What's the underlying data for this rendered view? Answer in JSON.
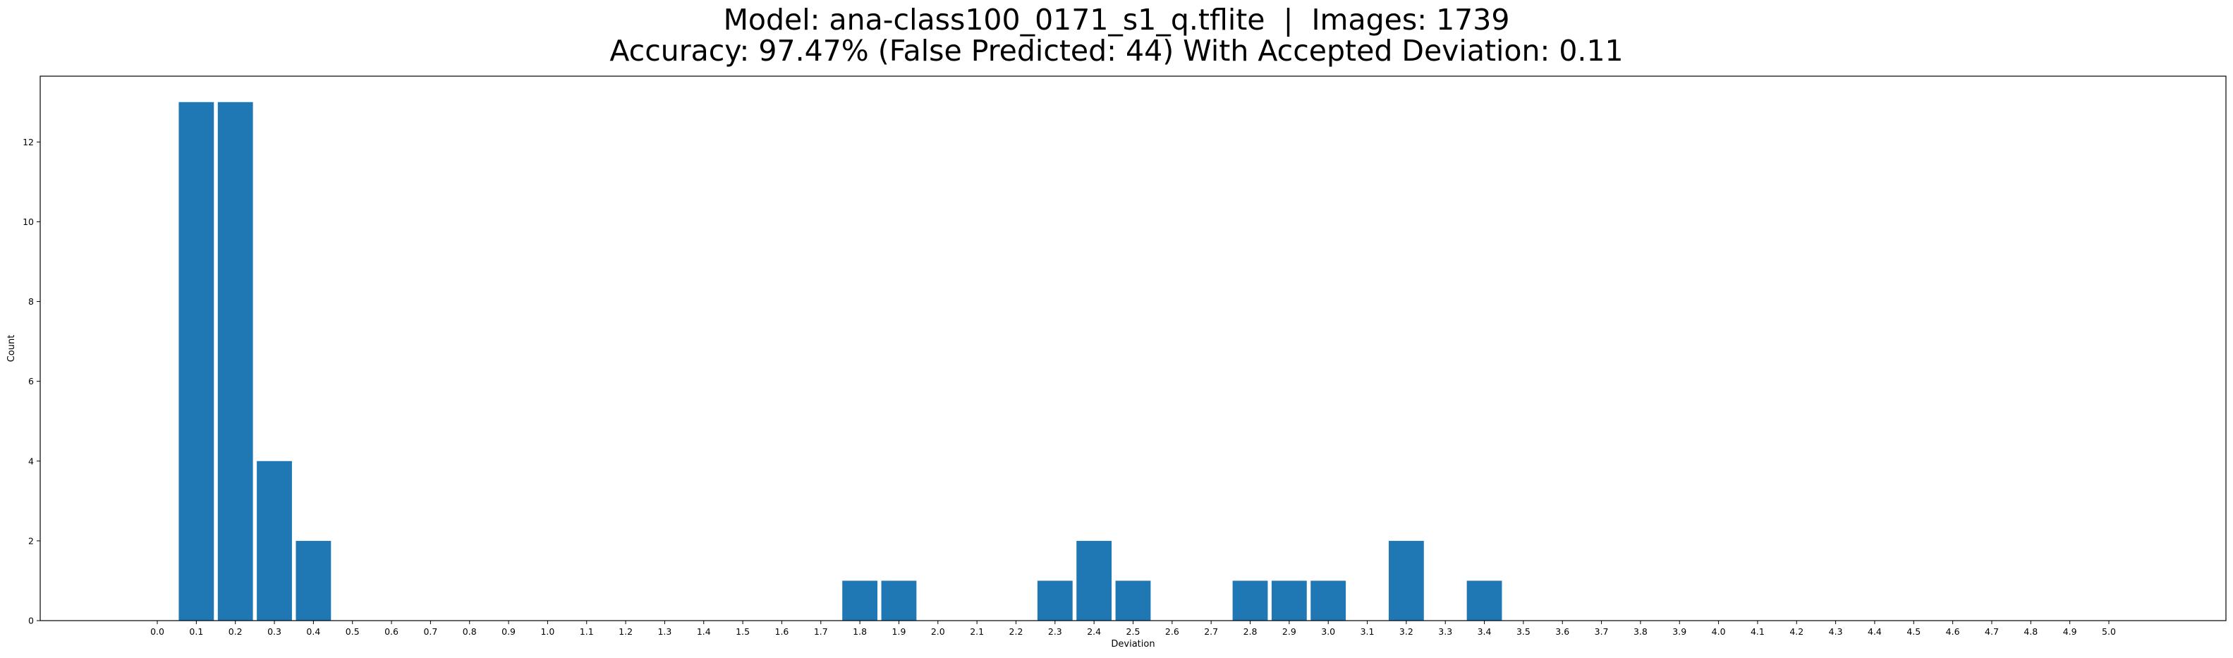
{
  "chart_data": {
    "type": "bar",
    "title": "Model: ana-class100_0171_s1_q.tflite  |  Images: 1739",
    "subtitle": "Accuracy: 97.47% (False Predicted: 44) With Accepted Deviation: 0.11",
    "xlabel": "Deviation",
    "ylabel": "Count",
    "x": [
      0.1,
      0.2,
      0.3,
      0.4,
      1.8,
      1.9,
      2.3,
      2.4,
      2.5,
      2.8,
      2.9,
      3.0,
      3.2,
      3.4
    ],
    "values": [
      13,
      13,
      4,
      2,
      1,
      1,
      1,
      2,
      1,
      1,
      1,
      1,
      2,
      1
    ],
    "xticks": [
      "0.0",
      "0.1",
      "0.2",
      "0.3",
      "0.4",
      "0.5",
      "0.6",
      "0.7",
      "0.8",
      "0.9",
      "1.0",
      "1.1",
      "1.2",
      "1.3",
      "1.4",
      "1.5",
      "1.6",
      "1.7",
      "1.8",
      "1.9",
      "2.0",
      "2.1",
      "2.2",
      "2.3",
      "2.4",
      "2.5",
      "2.6",
      "2.7",
      "2.8",
      "2.9",
      "3.0",
      "3.1",
      "3.2",
      "3.3",
      "3.4",
      "3.5",
      "3.6",
      "3.7",
      "3.8",
      "3.9",
      "4.0",
      "4.1",
      "4.2",
      "4.3",
      "4.4",
      "4.5",
      "4.6",
      "4.7",
      "4.8",
      "4.9",
      "5.0"
    ],
    "yticks": [
      "0",
      "2",
      "4",
      "6",
      "8",
      "10",
      "12"
    ],
    "xlim": [
      -0.3,
      5.3
    ],
    "ylim": [
      0,
      13.65
    ],
    "bar_width": 0.09,
    "grid": false,
    "bar_color": "#1f77b4"
  }
}
